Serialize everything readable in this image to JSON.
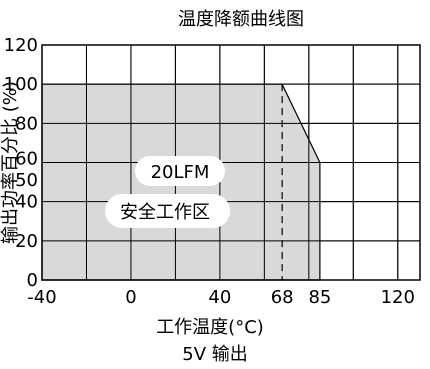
{
  "chart_data": {
    "type": "area",
    "title": "温度降额曲线图",
    "subtitle": "5V 输出",
    "xlabel": "工作温度(°C)",
    "ylabel": "输出功率百分比 (%)",
    "x_ticks": [
      -40,
      0,
      40,
      68,
      85,
      120
    ],
    "y_ticks": [
      0,
      20,
      40,
      50,
      60,
      80,
      100,
      120
    ],
    "xlim": [
      -40,
      130
    ],
    "ylim": [
      0,
      120
    ],
    "grid": true,
    "series": [
      {
        "points": [
          {
            "x": -40,
            "y": 100
          },
          {
            "x": 68,
            "y": 100
          },
          {
            "x": 85,
            "y": 60
          },
          {
            "x": 85,
            "y": 0
          },
          {
            "x": -40,
            "y": 0
          }
        ]
      }
    ],
    "reference_lines": [
      {
        "axis": "x",
        "value": 68,
        "style": "dashed"
      }
    ],
    "annotations": [
      "20LFM",
      "安全工作区"
    ],
    "colors": {
      "fill": "#d9d9d9",
      "line": "#000000"
    }
  }
}
